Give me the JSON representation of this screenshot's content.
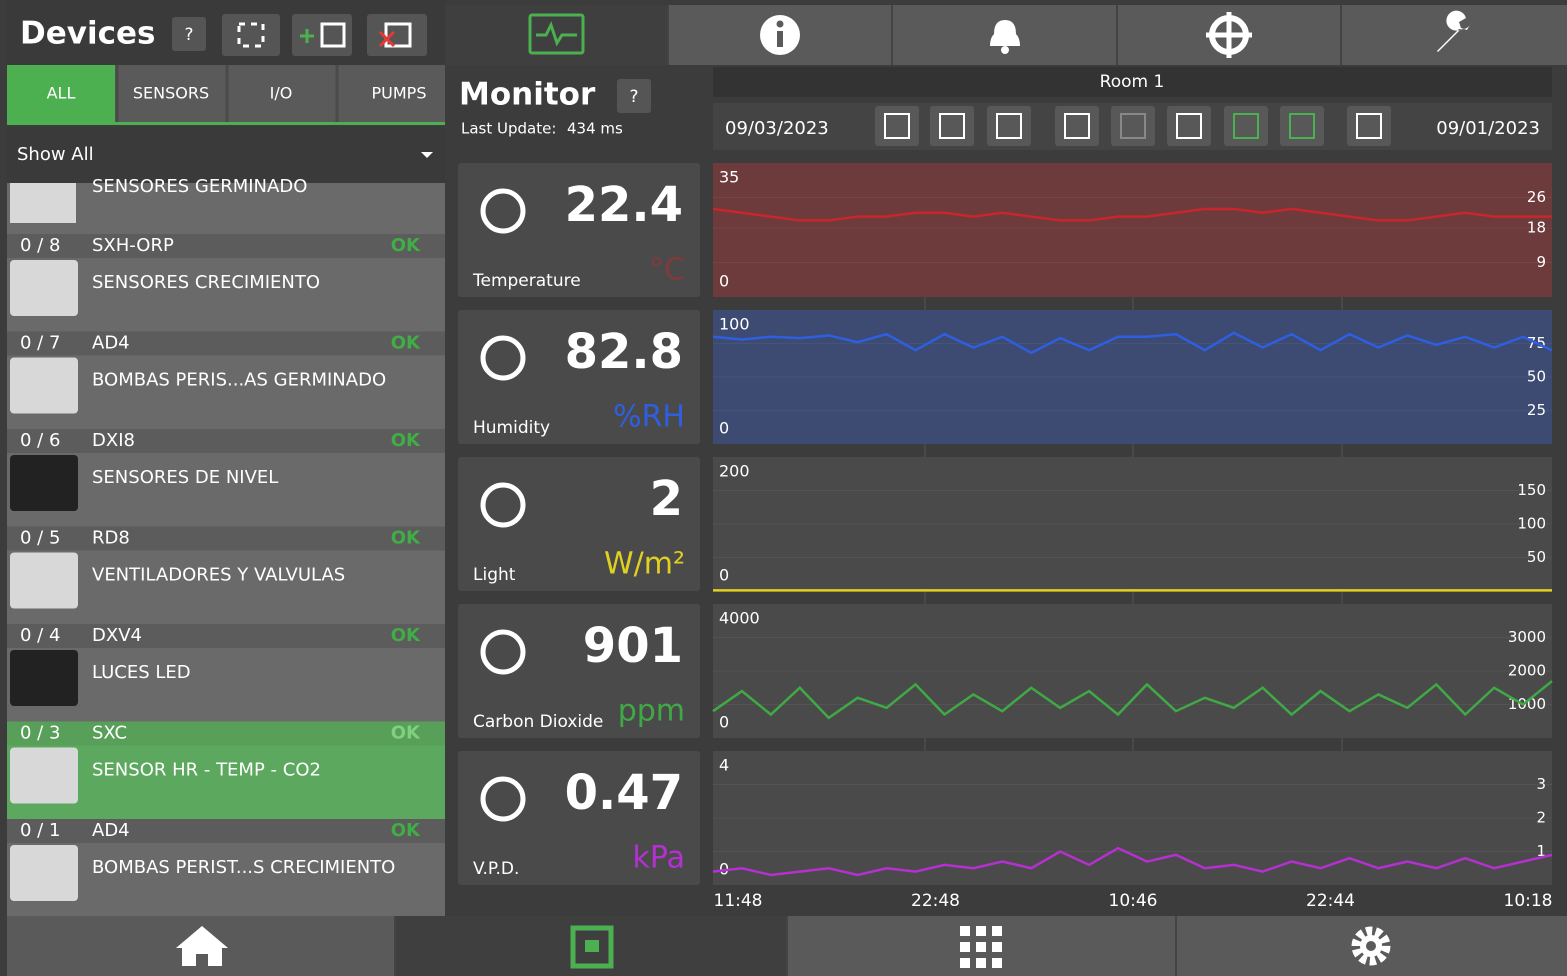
{
  "devices": {
    "title": "Devices",
    "help": "?",
    "filters": [
      "ALL",
      "SENSORS",
      "I/O",
      "PUMPS"
    ],
    "dropdown": "Show All",
    "partial_item": "SENSORES GERMINADO",
    "items": [
      {
        "slot": "0 / 8",
        "model": "SXH-ORP",
        "status": "OK",
        "name": "SENSORES CRECIMIENTO"
      },
      {
        "slot": "0 / 7",
        "model": "AD4",
        "status": "OK",
        "name": "BOMBAS PERIS...AS GERMINADO"
      },
      {
        "slot": "0 / 6",
        "model": "DXI8",
        "status": "OK",
        "name": "SENSORES DE NIVEL"
      },
      {
        "slot": "0 / 5",
        "model": "RD8",
        "status": "OK",
        "name": "VENTILADORES Y VALVULAS"
      },
      {
        "slot": "0 / 4",
        "model": "DXV4",
        "status": "OK",
        "name": "LUCES LED"
      },
      {
        "slot": "0 / 3",
        "model": "SXC",
        "status": "OK",
        "name": "SENSOR HR - TEMP - CO2",
        "selected": true
      },
      {
        "slot": "0 / 1",
        "model": "AD4",
        "status": "OK",
        "name": "BOMBAS PERIST...S CRECIMIENTO"
      }
    ]
  },
  "monitor": {
    "title": "Monitor",
    "help": "?",
    "last_update_label": "Last Update:",
    "last_update": "434 ms",
    "room": "Room 1",
    "date_start": "09/03/2023",
    "date_end": "09/01/2023",
    "xlabels": [
      "11:48",
      "22:48",
      "10:46",
      "22:44",
      "10:18"
    ],
    "sensors": [
      {
        "label": "Temperature",
        "value": 22.4,
        "unit": "°C",
        "color": "#c8262a",
        "chart": {
          "type": "line",
          "ylim": [
            0,
            35
          ],
          "yticks": [
            9,
            18,
            26
          ],
          "values": [
            23,
            22,
            21,
            20,
            20,
            21,
            21,
            22,
            22,
            21,
            22,
            21,
            20,
            20,
            21,
            21,
            22,
            23,
            23,
            22,
            23,
            22,
            21,
            20,
            20,
            21,
            22,
            21,
            21,
            21
          ]
        }
      },
      {
        "label": "Humidity",
        "value": 82.8,
        "unit": "%RH",
        "color": "#2e5fe0",
        "chart": {
          "type": "line",
          "ylim": [
            0,
            100
          ],
          "yticks": [
            25,
            50,
            75
          ],
          "values": [
            80,
            78,
            80,
            79,
            81,
            76,
            82,
            70,
            82,
            72,
            80,
            68,
            79,
            70,
            80,
            80,
            82,
            70,
            83,
            72,
            82,
            70,
            82,
            72,
            81,
            74,
            80,
            72,
            80,
            70
          ]
        }
      },
      {
        "label": "Light",
        "value": 2,
        "unit": "W/m²",
        "color": "#e0d020",
        "chart": {
          "type": "line",
          "ylim": [
            0,
            200
          ],
          "yticks": [
            50,
            100,
            150
          ],
          "values": [
            1,
            1,
            1,
            1,
            1,
            1,
            1,
            1,
            1,
            1,
            1,
            1,
            1,
            1,
            1,
            1,
            1,
            1,
            1,
            1,
            1,
            1,
            1,
            1,
            1,
            1,
            1,
            1,
            1,
            1
          ]
        }
      },
      {
        "label": "Carbon Dioxide",
        "value": 901,
        "unit": "ppm",
        "color": "#3faa45",
        "chart": {
          "type": "line",
          "ylim": [
            0,
            4000
          ],
          "yticks": [
            1000,
            2000,
            3000
          ],
          "values": [
            800,
            1400,
            700,
            1500,
            600,
            1200,
            900,
            1600,
            700,
            1300,
            800,
            1500,
            900,
            1400,
            700,
            1600,
            800,
            1200,
            900,
            1500,
            700,
            1400,
            800,
            1300,
            900,
            1600,
            700,
            1500,
            1000,
            1700
          ]
        }
      },
      {
        "label": "V.P.D.",
        "value": 0.47,
        "unit": "kPa",
        "color": "#b530d0",
        "chart": {
          "type": "line",
          "ylim": [
            0,
            4
          ],
          "yticks": [
            1,
            2,
            3
          ],
          "values": [
            0.4,
            0.5,
            0.3,
            0.4,
            0.5,
            0.3,
            0.5,
            0.4,
            0.6,
            0.5,
            0.7,
            0.5,
            1.0,
            0.6,
            1.1,
            0.7,
            0.9,
            0.5,
            0.6,
            0.4,
            0.7,
            0.5,
            0.8,
            0.5,
            0.7,
            0.5,
            0.8,
            0.5,
            0.7,
            0.9
          ]
        }
      }
    ]
  }
}
